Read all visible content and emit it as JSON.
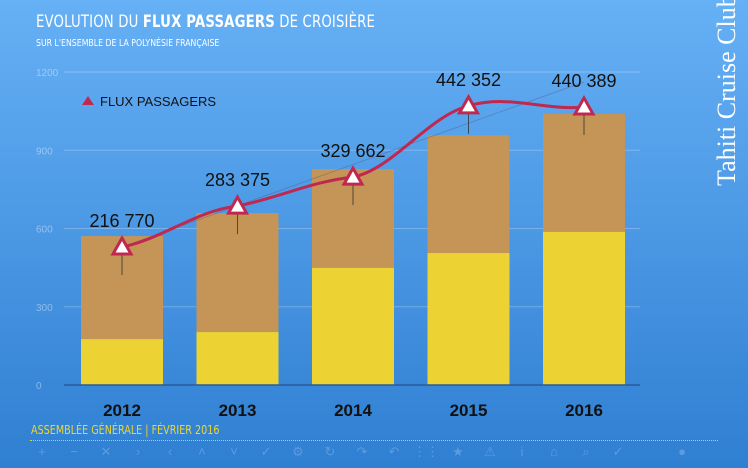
{
  "title": {
    "pre": "EVOLUTION DU ",
    "bold": "FLUX PASSAGERS",
    "post": " DE CROISIÈRE"
  },
  "subtitle": "SUR L'ENSEMBLE DE LA POLYNÉSIE FRANÇAISE",
  "logo": "Tahiti Cruise Club",
  "footer": "ASSEMBLÉE GÉNÉRALE | FÉVRIER 2016",
  "colors": {
    "line": "#c0284f",
    "bar_top": "#c49557",
    "bar_bottom": "#ecd232"
  },
  "toolbar": [
    "plus-icon",
    "minus-icon",
    "close-icon",
    "chevron-right-icon",
    "chevron-left-icon",
    "chevron-up-icon",
    "chevron-down-icon",
    "check-icon",
    "gear-icon",
    "rotate-icon",
    "redo-icon",
    "undo-icon",
    "grid-icon",
    "star-icon",
    "warning-icon",
    "info-icon",
    "home-icon",
    "search-icon",
    "check-icon",
    "blank-icon",
    "dot-icon",
    "blank-icon"
  ],
  "chart_data": {
    "type": "bar",
    "categories": [
      "2012",
      "2013",
      "2014",
      "2015",
      "2016"
    ],
    "ylim": [
      0,
      1200
    ],
    "yticks": [
      "0",
      "300",
      "600",
      "900",
      "1200"
    ],
    "grid": true,
    "legend": {
      "position": "top-left",
      "entries": [
        "FLUX PASSAGERS"
      ]
    },
    "series": [
      {
        "type": "stacked-bar-bottom",
        "values": [
          176,
          203,
          449,
          506,
          587
        ]
      },
      {
        "type": "stacked-bar-total",
        "values": [
          571,
          659,
          828,
          958,
          1039
        ]
      },
      {
        "name": "FLUX PASSAGERS",
        "type": "line",
        "values": [
          529,
          686,
          797,
          1070,
          1066
        ],
        "labels": [
          "216 770",
          "283 375",
          "329 662",
          "442 352",
          "440 389"
        ]
      }
    ]
  }
}
